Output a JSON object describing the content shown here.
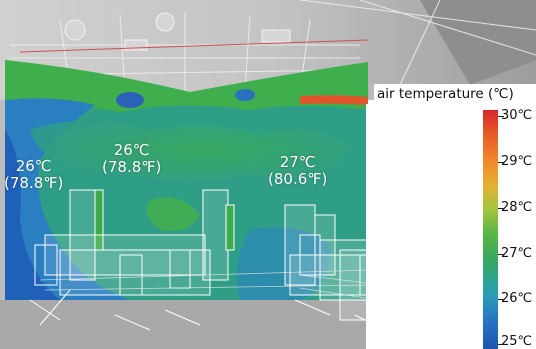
{
  "scene": {
    "temperature_labels": [
      {
        "celsius": "26℃",
        "fahrenheit": "(78.8℉)"
      },
      {
        "celsius": "26℃",
        "fahrenheit": "(78.8℉)"
      },
      {
        "celsius": "27℃",
        "fahrenheit": "(80.6℉)"
      }
    ]
  },
  "legend": {
    "title": "air temperature (℃)",
    "ticks": [
      "30℃",
      "29℃",
      "28℃",
      "27℃",
      "26℃",
      "25℃"
    ]
  },
  "colors": {
    "warm": "#d8272a",
    "mid": "#59b445",
    "teal": "#2ea58a",
    "cool": "#1e53b0"
  }
}
